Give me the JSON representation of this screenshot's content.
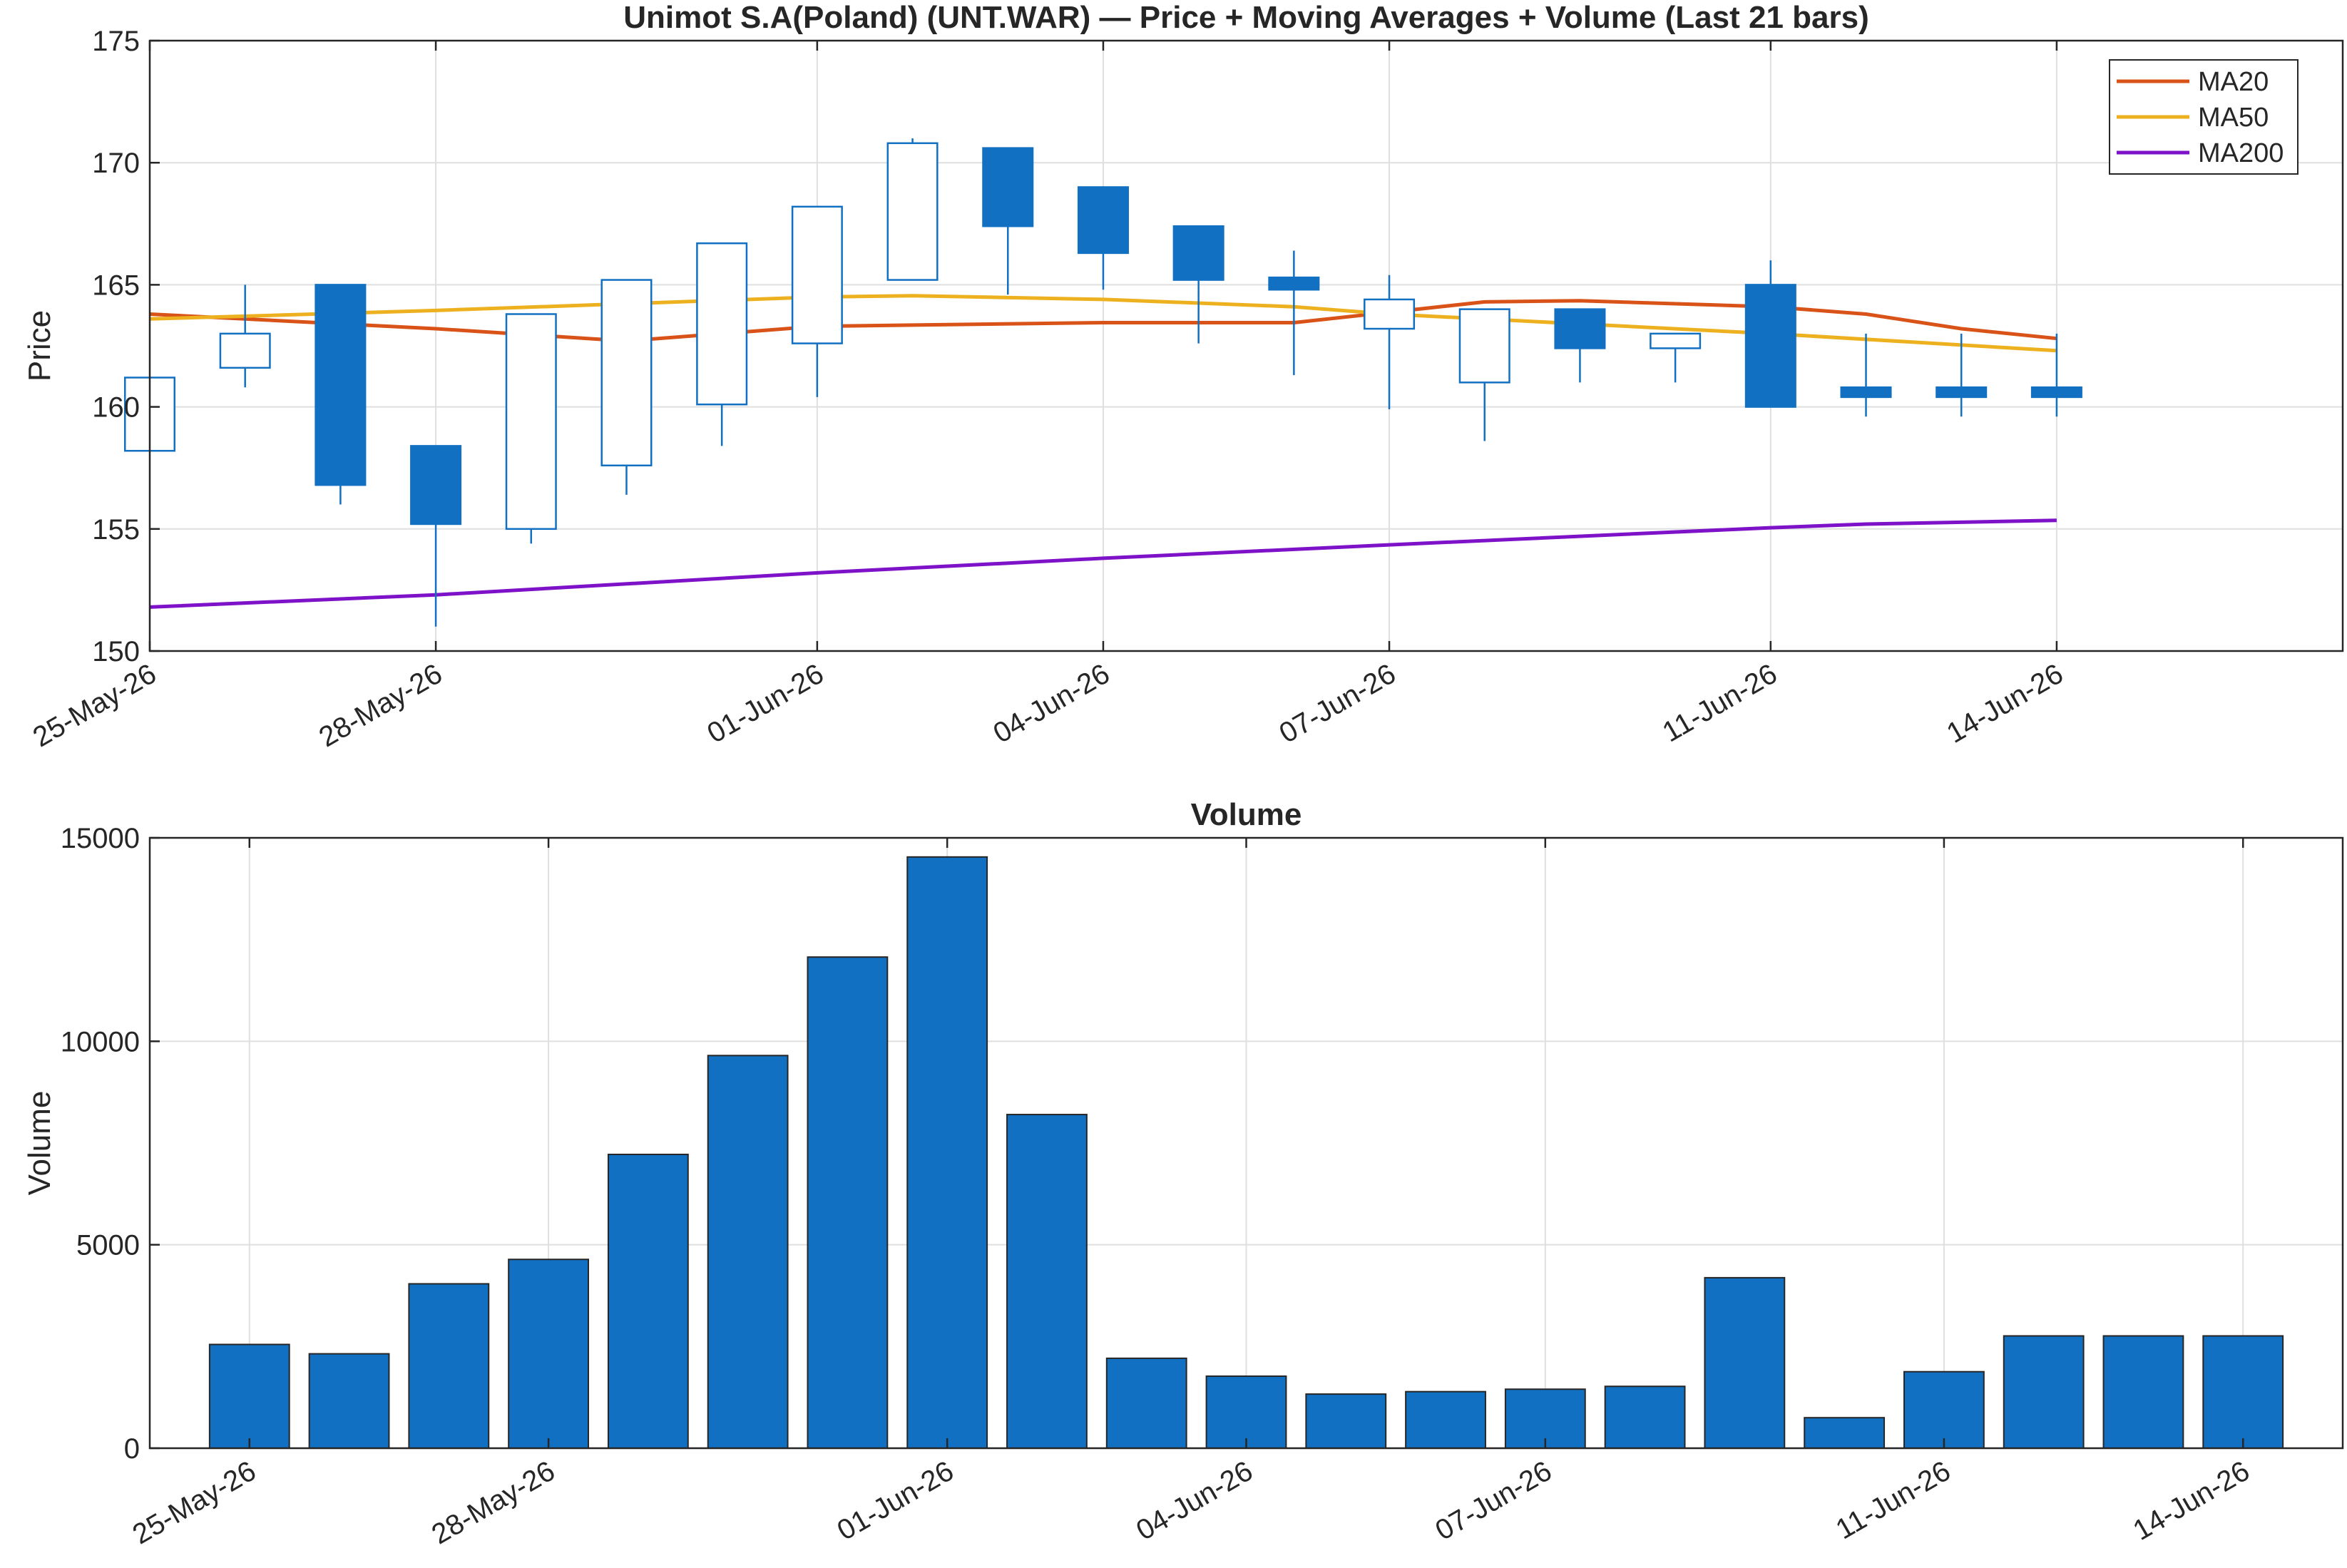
{
  "chart_data": [
    {
      "type": "candlestick",
      "title": "Unimot S.A(Poland) (UNT.WAR) — Price + Moving Averages + Volume (Last 21 bars)",
      "ylabel": "Price",
      "ylim": [
        150,
        175
      ],
      "yticks": [
        150,
        155,
        160,
        165,
        170,
        175
      ],
      "xlim_dates": [
        "2026-05-25",
        "2026-06-17"
      ],
      "xticks": [
        {
          "date": "2026-05-25",
          "label": "25-May-26"
        },
        {
          "date": "2026-05-28",
          "label": "28-May-26"
        },
        {
          "date": "2026-06-01",
          "label": "01-Jun-26"
        },
        {
          "date": "2026-06-04",
          "label": "04-Jun-26"
        },
        {
          "date": "2026-06-07",
          "label": "07-Jun-26"
        },
        {
          "date": "2026-06-11",
          "label": "11-Jun-26"
        },
        {
          "date": "2026-06-14",
          "label": "14-Jun-26"
        }
      ],
      "grid": true,
      "legend_position": "top-right",
      "colors": {
        "up": "#ffffff",
        "down": "#1270c2",
        "edge": "#1270c2"
      },
      "bars": [
        {
          "date": "2026-05-25",
          "open": 158.2,
          "high": 161.2,
          "low": 158.2,
          "close": 161.2
        },
        {
          "date": "2026-05-26",
          "open": 161.6,
          "high": 165.0,
          "low": 160.8,
          "close": 163.0
        },
        {
          "date": "2026-05-27",
          "open": 165.0,
          "high": 165.0,
          "low": 156.0,
          "close": 156.8
        },
        {
          "date": "2026-05-28",
          "open": 158.4,
          "high": 158.4,
          "low": 151.0,
          "close": 155.2
        },
        {
          "date": "2026-05-29",
          "open": 155.0,
          "high": 163.8,
          "low": 154.4,
          "close": 163.8
        },
        {
          "date": "2026-05-30",
          "open": 157.6,
          "high": 165.2,
          "low": 156.4,
          "close": 165.2
        },
        {
          "date": "2026-05-31",
          "open": 160.1,
          "high": 166.7,
          "low": 158.4,
          "close": 166.7
        },
        {
          "date": "2026-06-01",
          "open": 162.6,
          "high": 168.2,
          "low": 160.4,
          "close": 168.2
        },
        {
          "date": "2026-06-02",
          "open": 165.2,
          "high": 171.0,
          "low": 165.2,
          "close": 170.8
        },
        {
          "date": "2026-06-03",
          "open": 170.6,
          "high": 170.6,
          "low": 164.6,
          "close": 167.4
        },
        {
          "date": "2026-06-04",
          "open": 169.0,
          "high": 169.0,
          "low": 164.8,
          "close": 166.3
        },
        {
          "date": "2026-06-05",
          "open": 167.4,
          "high": 167.4,
          "low": 162.6,
          "close": 165.2
        },
        {
          "date": "2026-06-06",
          "open": 165.3,
          "high": 166.4,
          "low": 161.3,
          "close": 164.8
        },
        {
          "date": "2026-06-07",
          "open": 163.2,
          "high": 165.4,
          "low": 159.9,
          "close": 164.4
        },
        {
          "date": "2026-06-08",
          "open": 161.0,
          "high": 164.0,
          "low": 158.6,
          "close": 164.0
        },
        {
          "date": "2026-06-09",
          "open": 164.0,
          "high": 164.0,
          "low": 161.0,
          "close": 162.4
        },
        {
          "date": "2026-06-10",
          "open": 162.4,
          "high": 163.0,
          "low": 161.0,
          "close": 163.0
        },
        {
          "date": "2026-06-11",
          "open": 165.0,
          "high": 166.0,
          "low": 160.0,
          "close": 160.0
        },
        {
          "date": "2026-06-12",
          "open": 160.8,
          "high": 163.0,
          "low": 159.6,
          "close": 160.4
        },
        {
          "date": "2026-06-13",
          "open": 160.8,
          "high": 163.0,
          "low": 159.6,
          "close": 160.4
        },
        {
          "date": "2026-06-14",
          "open": 160.8,
          "high": 163.0,
          "low": 159.6,
          "close": 160.4
        }
      ],
      "series": [
        {
          "name": "MA20",
          "color": "#d95319",
          "points": [
            {
              "date": "2026-05-25",
              "value": 163.8
            },
            {
              "date": "2026-05-28",
              "value": 163.2
            },
            {
              "date": "2026-05-30",
              "value": 162.7
            },
            {
              "date": "2026-06-01",
              "value": 163.3
            },
            {
              "date": "2026-06-04",
              "value": 163.45
            },
            {
              "date": "2026-06-06",
              "value": 163.45
            },
            {
              "date": "2026-06-08",
              "value": 164.3
            },
            {
              "date": "2026-06-09",
              "value": 164.35
            },
            {
              "date": "2026-06-11",
              "value": 164.1
            },
            {
              "date": "2026-06-12",
              "value": 163.8
            },
            {
              "date": "2026-06-13",
              "value": 163.2
            },
            {
              "date": "2026-06-14",
              "value": 162.8
            }
          ]
        },
        {
          "name": "MA50",
          "color": "#edb120",
          "points": [
            {
              "date": "2026-05-25",
              "value": 163.6
            },
            {
              "date": "2026-05-28",
              "value": 163.95
            },
            {
              "date": "2026-06-01",
              "value": 164.5
            },
            {
              "date": "2026-06-02",
              "value": 164.55
            },
            {
              "date": "2026-06-04",
              "value": 164.4
            },
            {
              "date": "2026-06-06",
              "value": 164.1
            },
            {
              "date": "2026-06-07",
              "value": 163.8
            },
            {
              "date": "2026-06-09",
              "value": 163.4
            },
            {
              "date": "2026-06-11",
              "value": 163.0
            },
            {
              "date": "2026-06-14",
              "value": 162.3
            }
          ]
        },
        {
          "name": "MA200",
          "color": "#7e12c8",
          "points": [
            {
              "date": "2026-05-25",
              "value": 151.8
            },
            {
              "date": "2026-05-28",
              "value": 152.3
            },
            {
              "date": "2026-06-01",
              "value": 153.2
            },
            {
              "date": "2026-06-04",
              "value": 153.8
            },
            {
              "date": "2026-06-07",
              "value": 154.35
            },
            {
              "date": "2026-06-11",
              "value": 155.05
            },
            {
              "date": "2026-06-12",
              "value": 155.2
            },
            {
              "date": "2026-06-14",
              "value": 155.35
            }
          ]
        }
      ]
    },
    {
      "type": "bar",
      "title": "Volume",
      "ylabel": "Volume",
      "ylim": [
        0,
        15000
      ],
      "yticks": [
        0,
        5000,
        10000,
        15000
      ],
      "xlim_dates": [
        "2026-05-24",
        "2026-06-15"
      ],
      "xticks": [
        {
          "date": "2026-05-25",
          "label": "25-May-26"
        },
        {
          "date": "2026-05-28",
          "label": "28-May-26"
        },
        {
          "date": "2026-06-01",
          "label": "01-Jun-26"
        },
        {
          "date": "2026-06-04",
          "label": "04-Jun-26"
        },
        {
          "date": "2026-06-07",
          "label": "07-Jun-26"
        },
        {
          "date": "2026-06-11",
          "label": "11-Jun-26"
        },
        {
          "date": "2026-06-14",
          "label": "14-Jun-26"
        }
      ],
      "grid": true,
      "color": "#1270c2",
      "bars": [
        {
          "date": "2026-05-25",
          "value": 2550
        },
        {
          "date": "2026-05-26",
          "value": 2320
        },
        {
          "date": "2026-05-27",
          "value": 4040
        },
        {
          "date": "2026-05-28",
          "value": 4640
        },
        {
          "date": "2026-05-29",
          "value": 7220
        },
        {
          "date": "2026-05-30",
          "value": 9650
        },
        {
          "date": "2026-05-31",
          "value": 12070
        },
        {
          "date": "2026-06-01",
          "value": 14530
        },
        {
          "date": "2026-06-02",
          "value": 8200
        },
        {
          "date": "2026-06-03",
          "value": 2210
        },
        {
          "date": "2026-06-04",
          "value": 1770
        },
        {
          "date": "2026-06-05",
          "value": 1330
        },
        {
          "date": "2026-06-06",
          "value": 1390
        },
        {
          "date": "2026-06-07",
          "value": 1450
        },
        {
          "date": "2026-06-08",
          "value": 1520
        },
        {
          "date": "2026-06-09",
          "value": 4190
        },
        {
          "date": "2026-06-10",
          "value": 750
        },
        {
          "date": "2026-06-11",
          "value": 1880
        },
        {
          "date": "2026-06-12",
          "value": 2760
        },
        {
          "date": "2026-06-13",
          "value": 2760
        },
        {
          "date": "2026-06-14",
          "value": 2760
        }
      ]
    }
  ]
}
